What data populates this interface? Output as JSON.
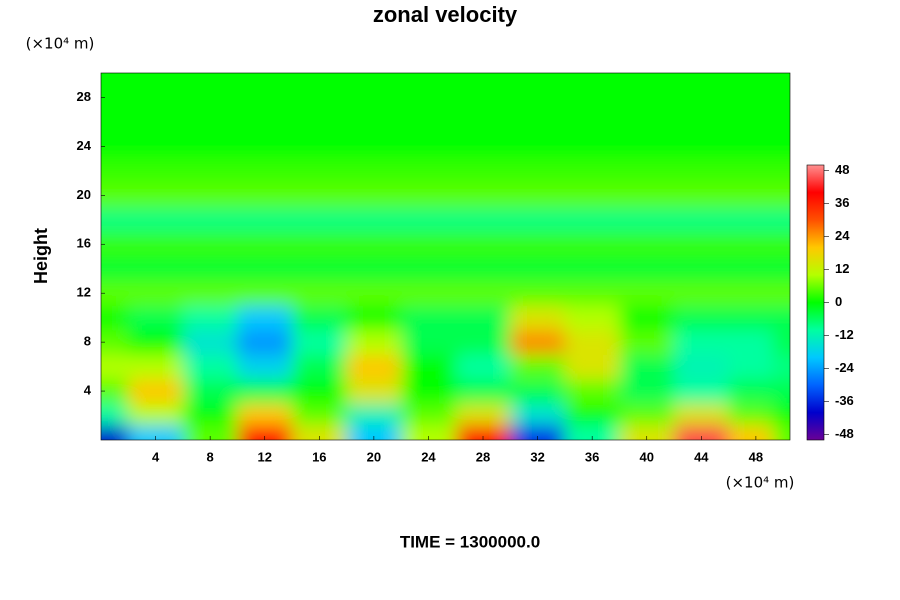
{
  "chart_data": {
    "type": "contour",
    "title": "zonal velocity",
    "ylabel": "Height",
    "xunit": "(×10⁴ m)",
    "yunit": "(×10⁴ m)",
    "footer": "TIME = 1300000.0",
    "xlim": [
      0,
      50.5
    ],
    "ylim": [
      0,
      30
    ],
    "xticks": [
      4,
      8,
      12,
      16,
      20,
      24,
      28,
      32,
      36,
      40,
      44,
      48
    ],
    "yticks": [
      4,
      8,
      12,
      16,
      20,
      24,
      28
    ],
    "clim": [
      -50,
      50
    ],
    "cticks": [
      -48,
      -36,
      -24,
      -12,
      0,
      12,
      24,
      36,
      48
    ],
    "colormap": [
      "#6a0096",
      "#0000cc",
      "#0064ff",
      "#00c8ff",
      "#00ffa0",
      "#00ff00",
      "#b4ff00",
      "#ffc800",
      "#ff5000",
      "#ff0000",
      "#ff9090"
    ],
    "x": [
      0,
      4,
      8,
      12,
      16,
      20,
      24,
      28,
      32,
      36,
      40,
      44,
      48,
      50.5
    ],
    "y": [
      0.5,
      2,
      4,
      6,
      8,
      10,
      12,
      14,
      16,
      18,
      20,
      22,
      24,
      26,
      28,
      30
    ],
    "z": [
      [
        -40,
        -20,
        5,
        40,
        15,
        -20,
        10,
        40,
        -35,
        -10,
        15,
        45,
        20,
        5
      ],
      [
        -10,
        10,
        0,
        20,
        5,
        -12,
        5,
        15,
        -15,
        0,
        5,
        15,
        5,
        0
      ],
      [
        5,
        20,
        -5,
        -5,
        0,
        15,
        0,
        -5,
        -5,
        5,
        -5,
        -10,
        -5,
        -5
      ],
      [
        10,
        10,
        -10,
        -18,
        -5,
        20,
        0,
        -10,
        5,
        15,
        -5,
        -12,
        -10,
        -8
      ],
      [
        5,
        0,
        -15,
        -25,
        -10,
        10,
        -5,
        -5,
        25,
        15,
        5,
        -10,
        -10,
        -5
      ],
      [
        0,
        -5,
        -10,
        -20,
        -5,
        0,
        -5,
        -5,
        15,
        10,
        0,
        -5,
        -5,
        -5
      ],
      [
        5,
        5,
        5,
        5,
        5,
        5,
        5,
        5,
        5,
        5,
        5,
        5,
        5,
        5
      ],
      [
        -3,
        -3,
        -3,
        -3,
        -3,
        -3,
        -3,
        -3,
        -3,
        -3,
        -3,
        -3,
        -3,
        -3
      ],
      [
        3,
        3,
        3,
        3,
        3,
        3,
        3,
        3,
        3,
        3,
        3,
        3,
        3,
        3
      ],
      [
        -8,
        -8,
        -8,
        -8,
        -8,
        -8,
        -8,
        -8,
        -8,
        -8,
        -8,
        -8,
        -8,
        -8
      ],
      [
        5,
        5,
        5,
        5,
        5,
        5,
        5,
        5,
        5,
        5,
        5,
        5,
        5,
        5
      ],
      [
        3,
        3,
        3,
        3,
        3,
        3,
        3,
        3,
        3,
        3,
        3,
        3,
        3,
        3
      ],
      [
        0,
        0,
        0,
        0,
        0,
        0,
        0,
        0,
        0,
        0,
        0,
        0,
        0,
        0
      ],
      [
        0,
        0,
        0,
        0,
        0,
        0,
        0,
        0,
        0,
        0,
        0,
        0,
        0,
        0
      ],
      [
        0,
        0,
        0,
        0,
        0,
        0,
        0,
        0,
        0,
        0,
        0,
        0,
        0,
        0
      ],
      [
        0,
        0,
        0,
        0,
        0,
        0,
        0,
        0,
        0,
        0,
        0,
        0,
        0,
        0
      ]
    ]
  }
}
